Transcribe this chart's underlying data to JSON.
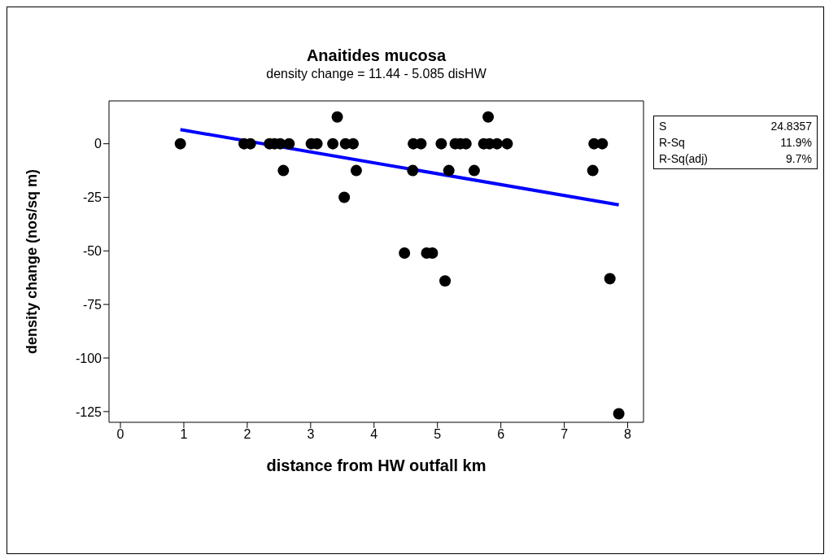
{
  "chart_data": {
    "type": "scatter",
    "title": "Anaitides mucosa",
    "subtitle": "density change =  11.44 - 5.085 disHW",
    "xlabel": "distance from HW outfall km",
    "ylabel": "density change  (nos/sq m)",
    "xlim": [
      -0.18,
      8.25
    ],
    "xticks": [
      0,
      1,
      2,
      3,
      4,
      5,
      6,
      7,
      8
    ],
    "ylim": [
      -130,
      20
    ],
    "yticks": [
      -125,
      -100,
      -75,
      -50,
      -25,
      0
    ],
    "annotations": [
      "S",
      "24.8357",
      "R-Sq",
      "11.9%",
      "R-Sq(adj)",
      "9.7%"
    ],
    "series": [
      {
        "color": "#000000",
        "marker": "circle",
        "x": [
          0.945,
          1.95,
          2.05,
          2.35,
          2.43,
          2.52,
          2.66,
          3.01,
          3.1,
          3.35,
          3.55,
          3.67,
          3.42,
          2.57,
          3.72,
          3.53,
          4.62,
          4.74,
          5.06,
          5.28,
          5.36,
          5.45,
          5.73,
          5.82,
          5.94,
          6.1,
          7.47,
          7.6,
          5.8,
          4.61,
          5.18,
          5.58,
          7.45,
          4.48,
          4.83,
          4.92,
          5.12,
          7.72,
          7.86
        ],
        "values": [
          0,
          0,
          0,
          0,
          0,
          0,
          0,
          0,
          0,
          0,
          0,
          0,
          12.5,
          -12.5,
          -12.5,
          -25,
          0,
          0,
          0,
          0,
          0,
          0,
          0,
          0,
          0,
          0,
          0,
          0,
          12.5,
          -12.5,
          -12.5,
          -12.5,
          -12.5,
          -51,
          -51,
          -51,
          -64,
          -63,
          -126
        ]
      },
      {
        "type": "line",
        "color": "#0000ff",
        "line_style": "solid",
        "x": [
          0.945,
          7.86
        ],
        "values": [
          6.6,
          -28.5
        ]
      }
    ]
  }
}
